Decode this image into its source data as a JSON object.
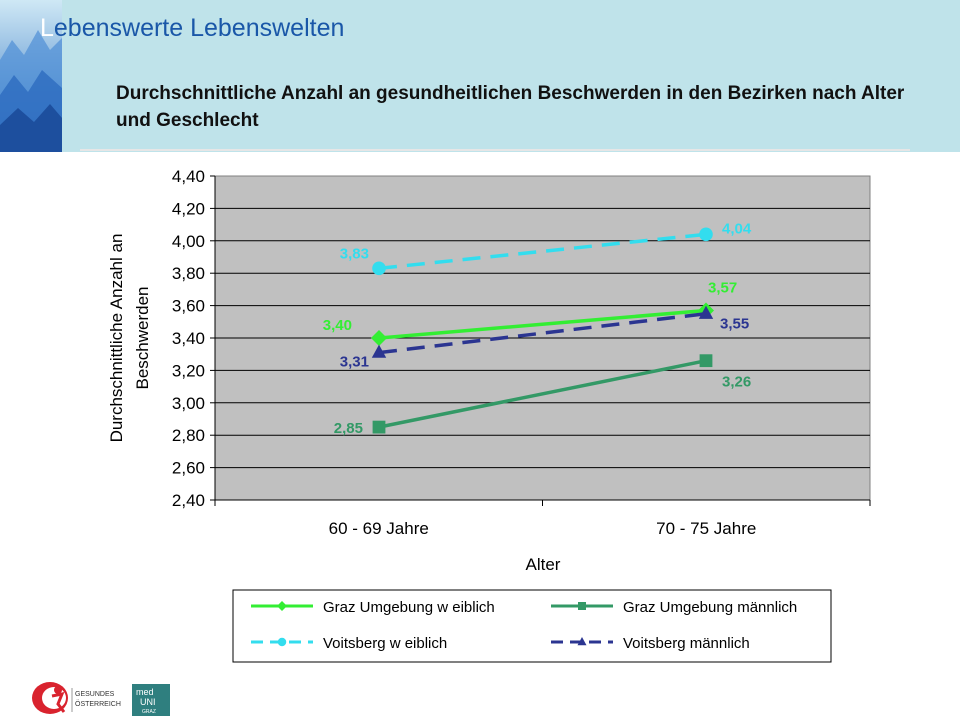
{
  "header": {
    "brand_first": "L",
    "brand_rest": "ebenswerte Lebenswelten",
    "title": "Durchschnittliche Anzahl an gesundheitlichen Beschwerden in den Bezirken nach Alter und Geschlecht"
  },
  "footer": {
    "logo_left_text_1": "GESUNDES",
    "logo_left_text_2": "ÖSTERREICH",
    "logo_right_text_1": "med",
    "logo_right_text_2": "UNI",
    "logo_right_text_3": "GRAZ"
  },
  "chart_data": {
    "type": "line",
    "xlabel": "Alter",
    "ylabel_lines": [
      "Durchschnittliche  Anzahl an",
      "Beschwerden"
    ],
    "categories": [
      "60 - 69 Jahre",
      "70 - 75 Jahre"
    ],
    "ylim": [
      2.4,
      4.4
    ],
    "yticks": [
      "2,40",
      "2,60",
      "2,80",
      "3,00",
      "3,20",
      "3,40",
      "3,60",
      "3,80",
      "4,00",
      "4,20",
      "4,40"
    ],
    "grid": true,
    "legend_position": "bottom",
    "series": [
      {
        "name": "Graz Umgebung w eiblich",
        "values": [
          3.4,
          3.57
        ],
        "labels": [
          "3,40",
          "3,57"
        ],
        "color": "#33ee33",
        "marker": "diamond",
        "dash": "solid"
      },
      {
        "name": "Graz Umgebung männlich",
        "values": [
          2.85,
          3.26
        ],
        "labels": [
          "2,85",
          "3,26"
        ],
        "color": "#339966",
        "marker": "square",
        "dash": "solid"
      },
      {
        "name": "Voitsberg w eiblich",
        "values": [
          3.83,
          4.04
        ],
        "labels": [
          "3,83",
          "4,04"
        ],
        "color": "#33ddee",
        "marker": "circle",
        "dash": "dashed"
      },
      {
        "name": "Voitsberg männlich",
        "values": [
          3.31,
          3.55
        ],
        "labels": [
          "3,31",
          "3,55"
        ],
        "color": "#2b3591",
        "marker": "triangle",
        "dash": "dashed"
      }
    ]
  }
}
